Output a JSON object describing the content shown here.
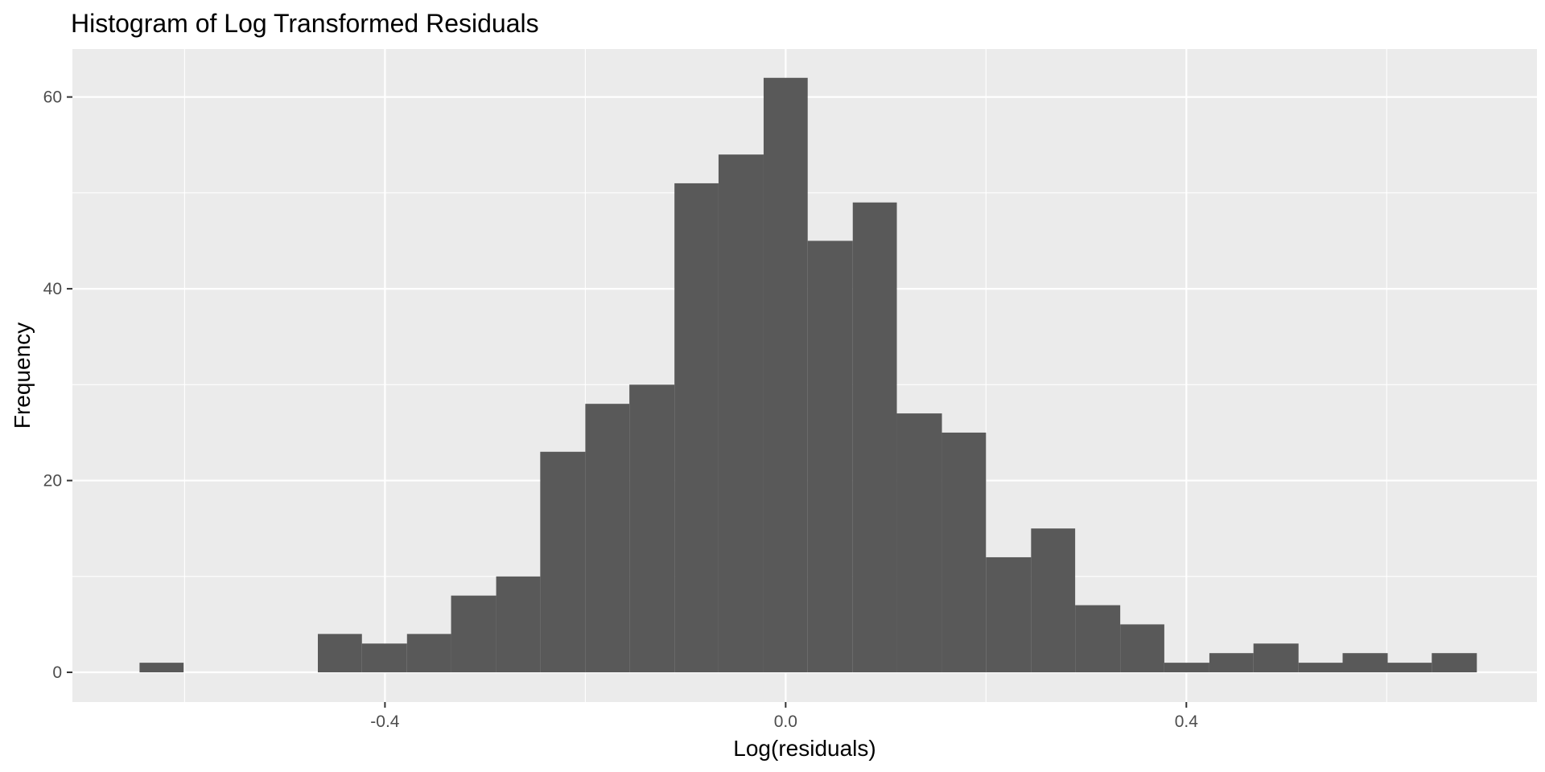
{
  "chart_data": {
    "type": "bar",
    "title": "Histogram of Log Transformed Residuals",
    "xlabel": "Log(residuals)",
    "ylabel": "Frequency",
    "xlim": [
      -0.712,
      0.75
    ],
    "ylim": [
      -3.1,
      65.0
    ],
    "x_ticks": [
      -0.4,
      0.0,
      0.4
    ],
    "x_tick_labels": [
      "-0.4",
      "0.0",
      "0.4"
    ],
    "y_ticks": [
      0,
      20,
      40,
      60
    ],
    "y_tick_labels": [
      "0",
      "20",
      "40",
      "60"
    ],
    "grid": true,
    "bar_color": "#595959",
    "panel_color": "#ebebeb",
    "bins": [
      {
        "x0": -0.645,
        "x1": -0.601,
        "count": 1
      },
      {
        "x0": -0.467,
        "x1": -0.423,
        "count": 4
      },
      {
        "x0": -0.423,
        "x1": -0.378,
        "count": 3
      },
      {
        "x0": -0.378,
        "x1": -0.334,
        "count": 4
      },
      {
        "x0": -0.334,
        "x1": -0.289,
        "count": 8
      },
      {
        "x0": -0.289,
        "x1": -0.245,
        "count": 10
      },
      {
        "x0": -0.245,
        "x1": -0.2,
        "count": 23
      },
      {
        "x0": -0.2,
        "x1": -0.156,
        "count": 28
      },
      {
        "x0": -0.156,
        "x1": -0.111,
        "count": 30
      },
      {
        "x0": -0.111,
        "x1": -0.067,
        "count": 51
      },
      {
        "x0": -0.067,
        "x1": -0.022,
        "count": 54
      },
      {
        "x0": -0.022,
        "x1": 0.022,
        "count": 62
      },
      {
        "x0": 0.022,
        "x1": 0.067,
        "count": 45
      },
      {
        "x0": 0.067,
        "x1": 0.111,
        "count": 49
      },
      {
        "x0": 0.111,
        "x1": 0.156,
        "count": 27
      },
      {
        "x0": 0.156,
        "x1": 0.2,
        "count": 25
      },
      {
        "x0": 0.2,
        "x1": 0.245,
        "count": 12
      },
      {
        "x0": 0.245,
        "x1": 0.289,
        "count": 15
      },
      {
        "x0": 0.289,
        "x1": 0.334,
        "count": 7
      },
      {
        "x0": 0.334,
        "x1": 0.378,
        "count": 5
      },
      {
        "x0": 0.378,
        "x1": 0.423,
        "count": 1
      },
      {
        "x0": 0.423,
        "x1": 0.467,
        "count": 2
      },
      {
        "x0": 0.467,
        "x1": 0.512,
        "count": 3
      },
      {
        "x0": 0.512,
        "x1": 0.556,
        "count": 1
      },
      {
        "x0": 0.556,
        "x1": 0.601,
        "count": 2
      },
      {
        "x0": 0.601,
        "x1": 0.645,
        "count": 1
      },
      {
        "x0": 0.645,
        "x1": 0.69,
        "count": 2
      }
    ]
  }
}
